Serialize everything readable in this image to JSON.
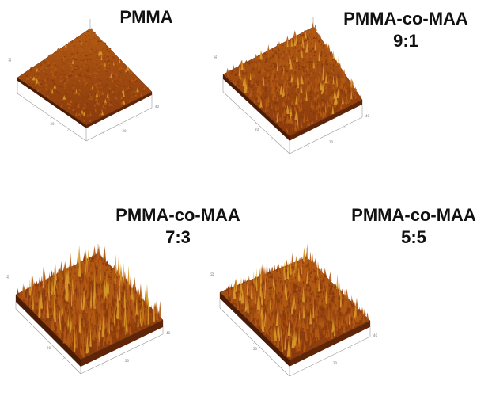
{
  "figure": {
    "panels": [
      {
        "name_line1": "PMMA",
        "name_line2": "",
        "roughness_level": 0.15,
        "axis_labels": [
          "40",
          "20",
          "20",
          "40"
        ]
      },
      {
        "name_line1": "PMMA-co-MAA",
        "name_line2": "9:1",
        "roughness_level": 0.45,
        "axis_labels": [
          "40",
          "20",
          "20",
          "40"
        ]
      },
      {
        "name_line1": "PMMA-co-MAA",
        "name_line2": "7:3",
        "roughness_level": 1.0,
        "axis_labels": [
          "40",
          "20",
          "20",
          "40"
        ]
      },
      {
        "name_line1": "PMMA-co-MAA",
        "name_line2": "5:5",
        "roughness_level": 0.8,
        "axis_labels": [
          "40",
          "20",
          "20",
          "40"
        ]
      }
    ],
    "colors": {
      "surface_base": "#8a3a0c",
      "surface_mid": "#b25a14",
      "surface_peak": "#d99a2a",
      "surface_shadow": "#4a1c06",
      "frame": "#9a9a9a"
    }
  }
}
